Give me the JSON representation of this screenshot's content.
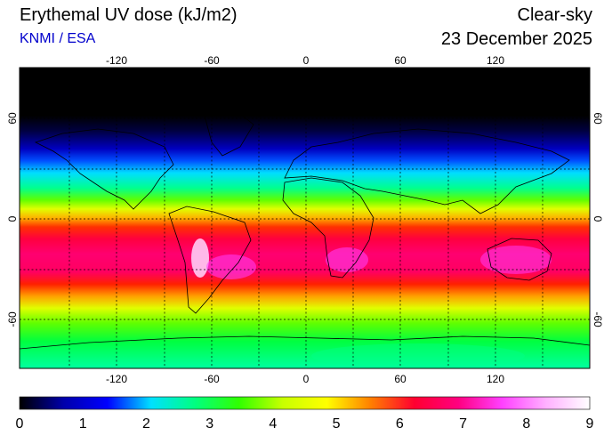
{
  "header": {
    "title": "Erythemal UV dose (kJ/m2)",
    "subtitle": "KNMI / ESA",
    "sky_condition": "Clear-sky",
    "date": "23 December 2025"
  },
  "map": {
    "projection": "equirectangular",
    "lon_range": [
      -180,
      180
    ],
    "lat_range": [
      -90,
      90
    ],
    "gridlines": "dotted",
    "lon_ticks": [
      -120,
      -60,
      0,
      60,
      120
    ],
    "lat_ticks": [
      60,
      0,
      -60
    ],
    "lon_tick_labels": [
      "-120",
      "-60",
      "0",
      "60",
      "120"
    ],
    "lat_tick_labels": [
      "60",
      "0",
      "-60"
    ],
    "field_description_bands": [
      {
        "lat": 90,
        "uv": 0
      },
      {
        "lat": 62,
        "uv": 0
      },
      {
        "lat": 55,
        "uv": 0.5
      },
      {
        "lat": 45,
        "uv": 1.5
      },
      {
        "lat": 38,
        "uv": 2.5
      },
      {
        "lat": 30,
        "uv": 3.5
      },
      {
        "lat": 22,
        "uv": 4.3
      },
      {
        "lat": 12,
        "uv": 5.3
      },
      {
        "lat": 4,
        "uv": 6.3
      },
      {
        "lat": -5,
        "uv": 7.0
      },
      {
        "lat": -15,
        "uv": 7.4
      },
      {
        "lat": -25,
        "uv": 7.6
      },
      {
        "lat": -35,
        "uv": 7.2
      },
      {
        "lat": -45,
        "uv": 6.2
      },
      {
        "lat": -55,
        "uv": 5.2
      },
      {
        "lat": -65,
        "uv": 4.3
      },
      {
        "lat": -75,
        "uv": 3.8
      },
      {
        "lat": -85,
        "uv": 3.3
      }
    ]
  },
  "colorbar": {
    "min": 0,
    "max": 9,
    "ticks": [
      "0",
      "1",
      "2",
      "3",
      "4",
      "5",
      "6",
      "7",
      "8",
      "9"
    ],
    "colors": [
      "#000000",
      "#0000aa",
      "#0000ff",
      "#00e0ff",
      "#00ff80",
      "#30ff00",
      "#c8ff00",
      "#ffff00",
      "#ff8000",
      "#ff0030",
      "#ff0080",
      "#ff40ff",
      "#ffb0ff",
      "#ffffff"
    ]
  }
}
